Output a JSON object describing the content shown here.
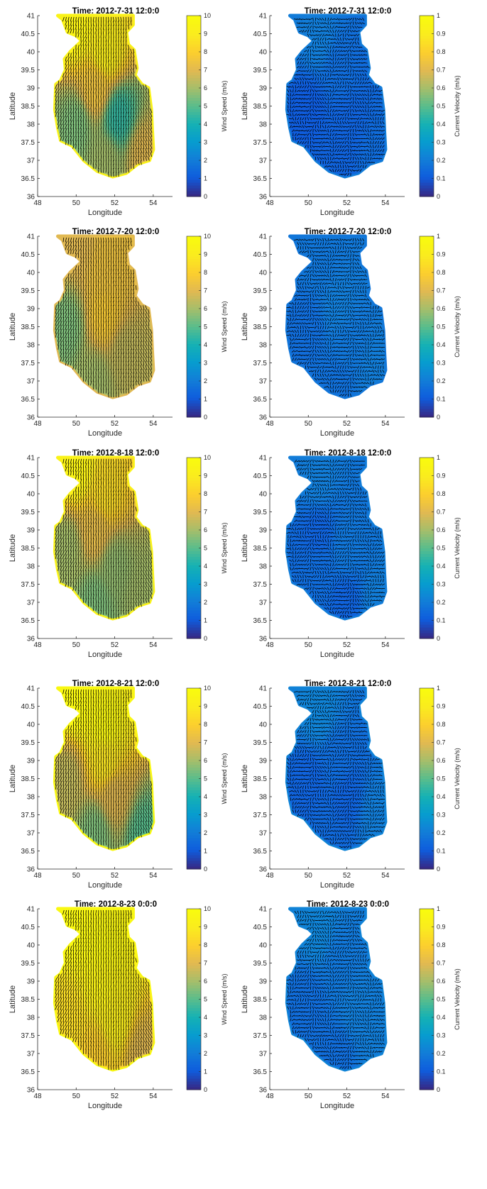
{
  "figure": {
    "colors": {
      "axis": "#262626",
      "arrows": "#000000",
      "background": "#ffffff"
    },
    "colormap": "parula",
    "panel_count": 10
  },
  "chart_data": [
    {
      "type": "heatmap",
      "subtype": "vector-field-map",
      "title": "Time: 2012-7-31 12:0:0",
      "xlabel": "Longitude",
      "ylabel": "Latitude",
      "xlim": [
        48,
        55
      ],
      "ylim": [
        36,
        41
      ],
      "xticks": [
        "48",
        "50",
        "52",
        "54"
      ],
      "yticks": [
        "36",
        "36.5",
        "37",
        "37.5",
        "38",
        "38.5",
        "39",
        "39.5",
        "40",
        "40.5",
        "41"
      ],
      "colorbar": {
        "label": "Wind Speed (m/s)",
        "range": [
          0,
          10
        ],
        "ticks": [
          "0",
          "1",
          "2",
          "3",
          "4",
          "5",
          "6",
          "7",
          "8",
          "9",
          "10"
        ]
      },
      "field_samples": [
        {
          "lon": 50.0,
          "lat": 40.7,
          "value": 9.5
        },
        {
          "lon": 51.5,
          "lat": 40.0,
          "value": 9.2
        },
        {
          "lon": 51.0,
          "lat": 39.0,
          "value": 7.5
        },
        {
          "lon": 50.0,
          "lat": 38.0,
          "value": 5.5
        },
        {
          "lon": 52.2,
          "lat": 38.2,
          "value": 4.5
        },
        {
          "lon": 51.5,
          "lat": 37.0,
          "value": 6.0
        },
        {
          "lon": 53.5,
          "lat": 37.2,
          "value": 7.0
        }
      ],
      "flow_direction": "south"
    },
    {
      "type": "heatmap",
      "subtype": "vector-field-map",
      "title": "Time: 2012-7-31 12:0:0",
      "xlabel": "Longitude",
      "ylabel": "Latitude",
      "xlim": [
        48,
        55
      ],
      "ylim": [
        36,
        41
      ],
      "xticks": [
        "48",
        "50",
        "52",
        "54"
      ],
      "yticks": [
        "36",
        "36.5",
        "37",
        "37.5",
        "38",
        "38.5",
        "39",
        "39.5",
        "40",
        "40.5",
        "41"
      ],
      "colorbar": {
        "label": "Current Velocity (m/s)",
        "range": [
          0,
          1
        ],
        "ticks": [
          "0",
          "0.1",
          "0.2",
          "0.3",
          "0.4",
          "0.5",
          "0.6",
          "0.7",
          "0.8",
          "0.9",
          "1"
        ]
      },
      "field_samples": [
        {
          "lon": 50.5,
          "lat": 40.3,
          "value": 0.2
        },
        {
          "lon": 51.5,
          "lat": 39.5,
          "value": 0.15
        },
        {
          "lon": 50.0,
          "lat": 38.5,
          "value": 0.1
        },
        {
          "lon": 52.0,
          "lat": 38.0,
          "value": 0.12
        },
        {
          "lon": 51.5,
          "lat": 37.0,
          "value": 0.12
        },
        {
          "lon": 53.5,
          "lat": 37.0,
          "value": 0.15
        }
      ],
      "flow_direction": "mixed"
    },
    {
      "type": "heatmap",
      "subtype": "vector-field-map",
      "title": "Time: 2012-7-20 12:0:0",
      "xlabel": "Longitude",
      "ylabel": "Latitude",
      "xlim": [
        48,
        55
      ],
      "ylim": [
        36,
        41
      ],
      "xticks": [
        "48",
        "50",
        "52",
        "54"
      ],
      "yticks": [
        "36",
        "36.5",
        "37",
        "37.5",
        "38",
        "38.5",
        "39",
        "39.5",
        "40",
        "40.5",
        "41"
      ],
      "colorbar": {
        "label": "Wind Speed (m/s)",
        "range": [
          0,
          10
        ],
        "ticks": [
          "0",
          "1",
          "2",
          "3",
          "4",
          "5",
          "6",
          "7",
          "8",
          "9",
          "10"
        ]
      },
      "field_samples": [
        {
          "lon": 50.0,
          "lat": 40.7,
          "value": 7.0
        },
        {
          "lon": 51.5,
          "lat": 40.0,
          "value": 7.5
        },
        {
          "lon": 51.5,
          "lat": 38.8,
          "value": 7.8
        },
        {
          "lon": 49.5,
          "lat": 38.5,
          "value": 5.5
        },
        {
          "lon": 52.5,
          "lat": 37.8,
          "value": 6.5
        },
        {
          "lon": 51.0,
          "lat": 37.0,
          "value": 6.0
        },
        {
          "lon": 53.5,
          "lat": 37.0,
          "value": 6.5
        }
      ],
      "flow_direction": "south"
    },
    {
      "type": "heatmap",
      "subtype": "vector-field-map",
      "title": "Time: 2012-7-20 12:0:0",
      "xlabel": "Longitude",
      "ylabel": "Latitude",
      "xlim": [
        48,
        55
      ],
      "ylim": [
        36,
        41
      ],
      "xticks": [
        "48",
        "50",
        "52",
        "54"
      ],
      "yticks": [
        "36",
        "36.5",
        "37",
        "37.5",
        "38",
        "38.5",
        "39",
        "39.5",
        "40",
        "40.5",
        "41"
      ],
      "colorbar": {
        "label": "Current Velocity (m/s)",
        "range": [
          0,
          1
        ],
        "ticks": [
          "0",
          "0.1",
          "0.2",
          "0.3",
          "0.4",
          "0.5",
          "0.6",
          "0.7",
          "0.8",
          "0.9",
          "1"
        ]
      },
      "field_samples": [
        {
          "lon": 50.5,
          "lat": 40.3,
          "value": 0.18
        },
        {
          "lon": 51.5,
          "lat": 39.0,
          "value": 0.2
        },
        {
          "lon": 50.0,
          "lat": 38.5,
          "value": 0.15
        },
        {
          "lon": 52.0,
          "lat": 38.0,
          "value": 0.18
        },
        {
          "lon": 51.5,
          "lat": 37.0,
          "value": 0.16
        },
        {
          "lon": 53.5,
          "lat": 37.2,
          "value": 0.2
        }
      ],
      "flow_direction": "mixed"
    },
    {
      "type": "heatmap",
      "subtype": "vector-field-map",
      "title": "Time: 2012-8-18 12:0:0",
      "xlabel": "Longitude",
      "ylabel": "Latitude",
      "xlim": [
        48,
        55
      ],
      "ylim": [
        36,
        41
      ],
      "xticks": [
        "48",
        "50",
        "52",
        "54"
      ],
      "yticks": [
        "36",
        "36.5",
        "37",
        "37.5",
        "38",
        "38.5",
        "39",
        "39.5",
        "40",
        "40.5",
        "41"
      ],
      "colorbar": {
        "label": "Wind Speed (m/s)",
        "range": [
          0,
          10
        ],
        "ticks": [
          "0",
          "1",
          "2",
          "3",
          "4",
          "5",
          "6",
          "7",
          "8",
          "9",
          "10"
        ]
      },
      "field_samples": [
        {
          "lon": 50.0,
          "lat": 40.7,
          "value": 9.5
        },
        {
          "lon": 51.5,
          "lat": 40.0,
          "value": 8.5
        },
        {
          "lon": 51.0,
          "lat": 39.0,
          "value": 7.2
        },
        {
          "lon": 49.5,
          "lat": 38.5,
          "value": 6.0
        },
        {
          "lon": 52.0,
          "lat": 38.0,
          "value": 5.8
        },
        {
          "lon": 51.0,
          "lat": 37.0,
          "value": 5.5
        },
        {
          "lon": 53.5,
          "lat": 37.2,
          "value": 6.0
        }
      ],
      "flow_direction": "south"
    },
    {
      "type": "heatmap",
      "subtype": "vector-field-map",
      "title": "Time: 2012-8-18 12:0:0",
      "xlabel": "Longitude",
      "ylabel": "Latitude",
      "xlim": [
        48,
        55
      ],
      "ylim": [
        36,
        41
      ],
      "xticks": [
        "48",
        "50",
        "52",
        "54"
      ],
      "yticks": [
        "36",
        "36.5",
        "37",
        "37.5",
        "38",
        "38.5",
        "39",
        "39.5",
        "40",
        "40.5",
        "41"
      ],
      "colorbar": {
        "label": "Current Velocity (m/s)",
        "range": [
          0,
          1
        ],
        "ticks": [
          "0",
          "0.1",
          "0.2",
          "0.3",
          "0.4",
          "0.5",
          "0.6",
          "0.7",
          "0.8",
          "0.9",
          "1"
        ]
      },
      "field_samples": [
        {
          "lon": 50.5,
          "lat": 40.3,
          "value": 0.2
        },
        {
          "lon": 50.5,
          "lat": 39.0,
          "value": 0.12
        },
        {
          "lon": 52.0,
          "lat": 38.5,
          "value": 0.18
        },
        {
          "lon": 50.5,
          "lat": 37.8,
          "value": 0.15
        },
        {
          "lon": 52.0,
          "lat": 37.0,
          "value": 0.12
        },
        {
          "lon": 53.5,
          "lat": 37.0,
          "value": 0.2
        }
      ],
      "flow_direction": "mixed"
    },
    {
      "type": "heatmap",
      "subtype": "vector-field-map",
      "title": "Time: 2012-8-21 12:0:0",
      "xlabel": "Longitude",
      "ylabel": "Latitude",
      "xlim": [
        48,
        55
      ],
      "ylim": [
        36,
        41
      ],
      "xticks": [
        "48",
        "50",
        "52",
        "54"
      ],
      "yticks": [
        "36",
        "36.5",
        "37",
        "37.5",
        "38",
        "38.5",
        "39",
        "39.5",
        "40",
        "40.5",
        "41"
      ],
      "colorbar": {
        "label": "Wind Speed (m/s)",
        "range": [
          0,
          10
        ],
        "ticks": [
          "0",
          "1",
          "2",
          "3",
          "4",
          "5",
          "6",
          "7",
          "8",
          "9",
          "10"
        ]
      },
      "field_samples": [
        {
          "lon": 50.0,
          "lat": 40.7,
          "value": 9.8
        },
        {
          "lon": 51.5,
          "lat": 40.0,
          "value": 9.8
        },
        {
          "lon": 51.5,
          "lat": 39.0,
          "value": 8.8
        },
        {
          "lon": 49.5,
          "lat": 38.5,
          "value": 6.5
        },
        {
          "lon": 52.0,
          "lat": 38.0,
          "value": 7.0
        },
        {
          "lon": 51.0,
          "lat": 37.0,
          "value": 5.5
        },
        {
          "lon": 53.5,
          "lat": 37.0,
          "value": 5.0
        }
      ],
      "flow_direction": "south"
    },
    {
      "type": "heatmap",
      "subtype": "vector-field-map",
      "title": "Time: 2012-8-21 12:0:0",
      "xlabel": "Longitude",
      "ylabel": "Latitude",
      "xlim": [
        48,
        55
      ],
      "ylim": [
        36,
        41
      ],
      "xticks": [
        "48",
        "50",
        "52",
        "54"
      ],
      "yticks": [
        "36",
        "36.5",
        "37",
        "37.5",
        "38",
        "38.5",
        "39",
        "39.5",
        "40",
        "40.5",
        "41"
      ],
      "colorbar": {
        "label": "Current Velocity (m/s)",
        "range": [
          0,
          1
        ],
        "ticks": [
          "0",
          "0.1",
          "0.2",
          "0.3",
          "0.4",
          "0.5",
          "0.6",
          "0.7",
          "0.8",
          "0.9",
          "1"
        ]
      },
      "field_samples": [
        {
          "lon": 50.5,
          "lat": 40.3,
          "value": 0.22
        },
        {
          "lon": 51.5,
          "lat": 39.0,
          "value": 0.15
        },
        {
          "lon": 50.0,
          "lat": 38.5,
          "value": 0.12
        },
        {
          "lon": 52.0,
          "lat": 38.0,
          "value": 0.12
        },
        {
          "lon": 51.0,
          "lat": 37.0,
          "value": 0.14
        },
        {
          "lon": 53.5,
          "lat": 37.5,
          "value": 0.2
        }
      ],
      "flow_direction": "mixed"
    },
    {
      "type": "heatmap",
      "subtype": "vector-field-map",
      "title": "Time: 2012-8-23 0:0:0",
      "xlabel": "Longitude",
      "ylabel": "Latitude",
      "xlim": [
        48,
        55
      ],
      "ylim": [
        36,
        41
      ],
      "xticks": [
        "48",
        "50",
        "52",
        "54"
      ],
      "yticks": [
        "36",
        "36.5",
        "37",
        "37.5",
        "38",
        "38.5",
        "39",
        "39.5",
        "40",
        "40.5",
        "41"
      ],
      "colorbar": {
        "label": "Wind Speed (m/s)",
        "range": [
          0,
          10
        ],
        "ticks": [
          "0",
          "1",
          "2",
          "3",
          "4",
          "5",
          "6",
          "7",
          "8",
          "9",
          "10"
        ]
      },
      "field_samples": [
        {
          "lon": 50.0,
          "lat": 40.7,
          "value": 9.8
        },
        {
          "lon": 51.5,
          "lat": 40.0,
          "value": 9.8
        },
        {
          "lon": 51.5,
          "lat": 39.0,
          "value": 9.5
        },
        {
          "lon": 49.5,
          "lat": 38.0,
          "value": 8.5
        },
        {
          "lon": 52.0,
          "lat": 38.0,
          "value": 9.2
        },
        {
          "lon": 51.0,
          "lat": 37.0,
          "value": 8.0
        },
        {
          "lon": 53.5,
          "lat": 37.0,
          "value": 7.0
        }
      ],
      "flow_direction": "south"
    },
    {
      "type": "heatmap",
      "subtype": "vector-field-map",
      "title": "Time: 2012-8-23 0:0:0",
      "xlabel": "Longitude",
      "ylabel": "Latitude",
      "xlim": [
        48,
        55
      ],
      "ylim": [
        36,
        41
      ],
      "xticks": [
        "48",
        "50",
        "52",
        "54"
      ],
      "yticks": [
        "36",
        "36.5",
        "37",
        "37.5",
        "38",
        "38.5",
        "39",
        "39.5",
        "40",
        "40.5",
        "41"
      ],
      "colorbar": {
        "label": "Current Velocity (m/s)",
        "range": [
          0,
          1
        ],
        "ticks": [
          "0",
          "0.1",
          "0.2",
          "0.3",
          "0.4",
          "0.5",
          "0.6",
          "0.7",
          "0.8",
          "0.9",
          "1"
        ]
      },
      "field_samples": [
        {
          "lon": 50.5,
          "lat": 40.3,
          "value": 0.22
        },
        {
          "lon": 51.5,
          "lat": 39.5,
          "value": 0.18
        },
        {
          "lon": 50.0,
          "lat": 38.5,
          "value": 0.15
        },
        {
          "lon": 52.5,
          "lat": 38.2,
          "value": 0.2
        },
        {
          "lon": 51.5,
          "lat": 37.0,
          "value": 0.15
        },
        {
          "lon": 53.5,
          "lat": 37.2,
          "value": 0.2
        }
      ],
      "flow_direction": "mixed"
    }
  ]
}
